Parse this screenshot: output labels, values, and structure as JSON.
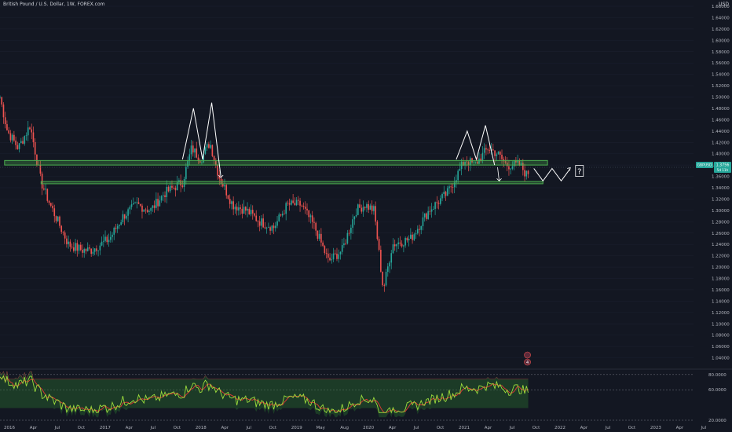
{
  "header": {
    "title": "British Pound / U.S. Dollar, 1W, FOREX.com",
    "currency": "USD"
  },
  "colors": {
    "background": "#131722",
    "up": "#26a69a",
    "down": "#ef5350",
    "zone": "#4caf50",
    "drawing": "#ffffff",
    "rsi_line": "#9cdc3c",
    "rsi_signal": "#e53935"
  },
  "price_badge": {
    "symbol": "GBPUSD",
    "value": "1.3756",
    "countdown": "5d 11h"
  },
  "annotation": {
    "text": "?"
  },
  "indicator_icons": [
    {
      "icon": "news-icon",
      "label": ""
    },
    {
      "icon": "dividend-icon",
      "label": "4"
    }
  ],
  "chart_data": {
    "type": "candlestick",
    "y_axis": {
      "min": 1.02,
      "max": 1.66,
      "ticks": [
        "1.66000",
        "1.64000",
        "1.62000",
        "1.60000",
        "1.58000",
        "1.56000",
        "1.54000",
        "1.52000",
        "1.50000",
        "1.48000",
        "1.46000",
        "1.44000",
        "1.42000",
        "1.40000",
        "1.38000",
        "1.36000",
        "1.34000",
        "1.32000",
        "1.30000",
        "1.28000",
        "1.26000",
        "1.24000",
        "1.22000",
        "1.20000",
        "1.18000",
        "1.16000",
        "1.14000",
        "1.12000",
        "1.10000",
        "1.08000",
        "1.06000",
        "1.04000"
      ]
    },
    "x_axis": {
      "ticks": [
        "2016",
        "Apr",
        "Jul",
        "Oct",
        "2017",
        "Apr",
        "Jul",
        "Oct",
        "2018",
        "Apr",
        "Jul",
        "Oct",
        "2019",
        "May",
        "Aug",
        "2020",
        "Apr",
        "Jul",
        "Oct",
        "2021",
        "Apr",
        "Jul",
        "Oct",
        "2022",
        "Apr",
        "Jul",
        "Oct",
        "2023",
        "Apr",
        "Jul"
      ]
    },
    "price_path": [
      [
        2016.0,
        1.5
      ],
      [
        2016.08,
        1.44
      ],
      [
        2016.2,
        1.41
      ],
      [
        2016.33,
        1.45
      ],
      [
        2016.45,
        1.35
      ],
      [
        2016.55,
        1.31
      ],
      [
        2016.75,
        1.24
      ],
      [
        2016.9,
        1.23
      ],
      [
        2017.0,
        1.23
      ],
      [
        2017.2,
        1.25
      ],
      [
        2017.35,
        1.29
      ],
      [
        2017.5,
        1.31
      ],
      [
        2017.65,
        1.3
      ],
      [
        2017.8,
        1.33
      ],
      [
        2018.0,
        1.35
      ],
      [
        2018.1,
        1.41
      ],
      [
        2018.2,
        1.39
      ],
      [
        2018.3,
        1.42
      ],
      [
        2018.4,
        1.36
      ],
      [
        2018.55,
        1.31
      ],
      [
        2018.7,
        1.3
      ],
      [
        2018.85,
        1.28
      ],
      [
        2019.0,
        1.27
      ],
      [
        2019.15,
        1.31
      ],
      [
        2019.3,
        1.31
      ],
      [
        2019.45,
        1.27
      ],
      [
        2019.6,
        1.21
      ],
      [
        2019.75,
        1.23
      ],
      [
        2019.9,
        1.3
      ],
      [
        2020.0,
        1.31
      ],
      [
        2020.1,
        1.3
      ],
      [
        2020.2,
        1.16
      ],
      [
        2020.3,
        1.24
      ],
      [
        2020.5,
        1.25
      ],
      [
        2020.7,
        1.3
      ],
      [
        2020.9,
        1.33
      ],
      [
        2021.0,
        1.36
      ],
      [
        2021.1,
        1.39
      ],
      [
        2021.2,
        1.38
      ],
      [
        2021.35,
        1.41
      ],
      [
        2021.45,
        1.4
      ],
      [
        2021.55,
        1.38
      ],
      [
        2021.7,
        1.38
      ],
      [
        2021.78,
        1.36
      ],
      [
        2021.8,
        1.376
      ]
    ],
    "zones": [
      {
        "name": "resistance",
        "y_top": 1.388,
        "y_bottom": 1.38,
        "x_start": 2016.05,
        "x_end": 2022.0
      },
      {
        "name": "support",
        "y_top": 1.351,
        "y_bottom": 1.347,
        "x_start": 2016.45,
        "x_end": 2021.95
      }
    ],
    "double_tops": [
      [
        [
          2018.0,
          1.39
        ],
        [
          2018.12,
          1.48
        ],
        [
          2018.22,
          1.39
        ],
        [
          2018.32,
          1.49
        ],
        [
          2018.42,
          1.36
        ]
      ],
      [
        [
          2021.0,
          1.39
        ],
        [
          2021.12,
          1.44
        ],
        [
          2021.22,
          1.39
        ],
        [
          2021.32,
          1.45
        ],
        [
          2021.42,
          1.38
        ]
      ]
    ],
    "projection": [
      [
        2021.85,
        1.374
      ],
      [
        2021.95,
        1.352
      ],
      [
        2022.05,
        1.374
      ],
      [
        2022.15,
        1.352
      ],
      [
        2022.25,
        1.374
      ]
    ],
    "rsi": {
      "ticks": [
        "80.0000",
        "60.0000",
        "20.0000"
      ]
    }
  }
}
